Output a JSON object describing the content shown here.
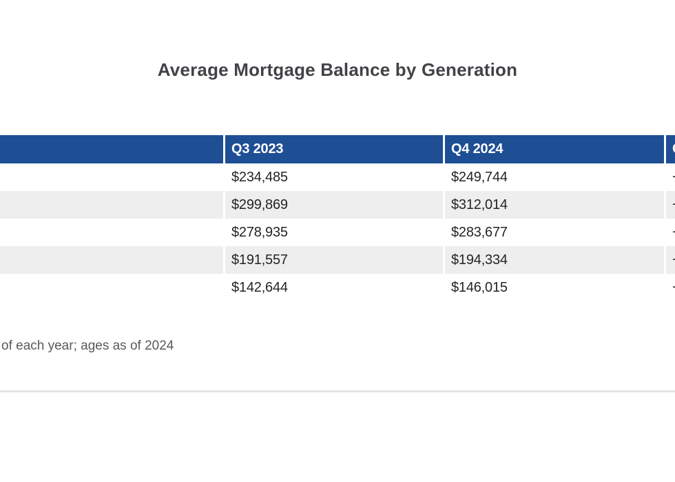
{
  "page": {
    "title": "Average Mortgage Balance by Generation",
    "footnote": "of each year; ages as of 2024"
  },
  "table": {
    "columns": [
      {
        "label": ""
      },
      {
        "label": "Q3 2023"
      },
      {
        "label": "Q4 2024"
      },
      {
        "label": "C"
      }
    ],
    "rows": [
      {
        "cells": [
          "",
          "$234,485",
          "$249,744",
          "+"
        ]
      },
      {
        "cells": [
          "",
          "$299,869",
          "$312,014",
          "+"
        ]
      },
      {
        "cells": [
          "",
          "$278,935",
          "$283,677",
          "+"
        ]
      },
      {
        "cells": [
          "",
          "$191,557",
          "$194,334",
          "+"
        ]
      },
      {
        "cells": [
          "",
          "$142,644",
          "$146,015",
          "+"
        ]
      }
    ]
  },
  "colors": {
    "header_bg": "#1e4e94",
    "header_text": "#ffffff",
    "stripe_bg": "#eeeeee",
    "cell_text": "#232427",
    "title_color": "#414347",
    "footnote_color": "#58595d",
    "divider_color": "#e4e4e4"
  }
}
